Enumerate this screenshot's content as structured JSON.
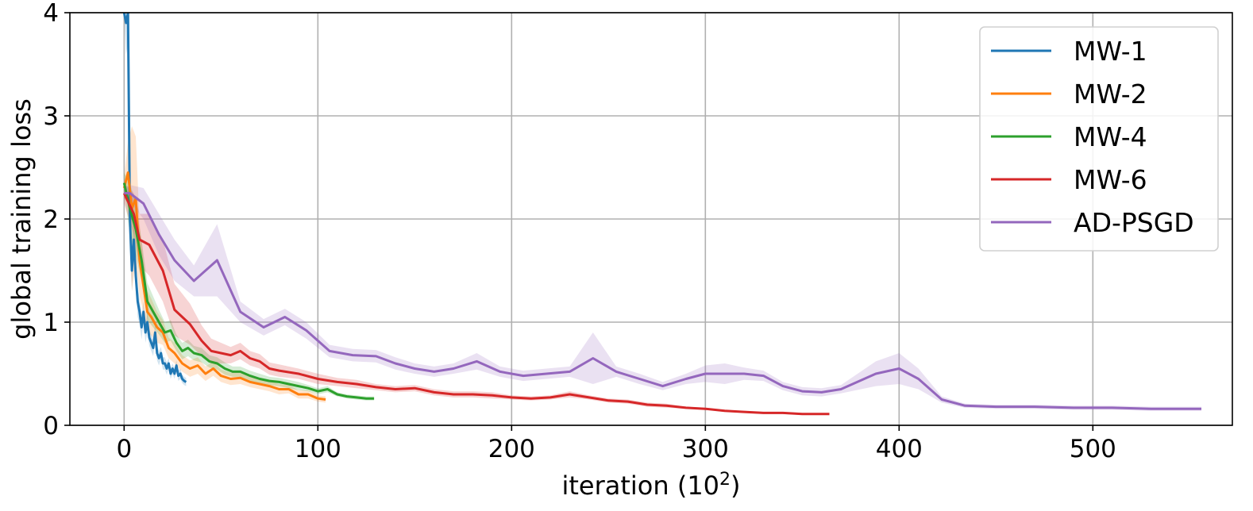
{
  "chart_data": {
    "type": "line",
    "xlabel": "iteration (10",
    "xlabel_sup": "2",
    "xlabel_end": ")",
    "ylabel": "global training loss",
    "xlim": [
      -28,
      572
    ],
    "ylim": [
      0,
      4
    ],
    "x_ticks": [
      0,
      100,
      200,
      300,
      400,
      500
    ],
    "y_ticks": [
      0,
      1,
      2,
      3,
      4
    ],
    "grid": true,
    "legend_position": "top-right",
    "series": [
      {
        "name": "MW-1",
        "color": "#1f77b4",
        "x": [
          0,
          1,
          2,
          3,
          4,
          5,
          6,
          7,
          8,
          9,
          10,
          11,
          12,
          13,
          14,
          15,
          16,
          17,
          18,
          19,
          20,
          21,
          22,
          23,
          24,
          25,
          26,
          27,
          28,
          29,
          30,
          31,
          32
        ],
        "y": [
          4.0,
          3.9,
          4.0,
          2.0,
          1.5,
          1.8,
          1.45,
          1.2,
          1.1,
          0.95,
          1.1,
          0.9,
          1.0,
          0.85,
          0.8,
          0.75,
          0.9,
          0.7,
          0.65,
          0.7,
          0.6,
          0.6,
          0.55,
          0.6,
          0.5,
          0.55,
          0.5,
          0.58,
          0.48,
          0.5,
          0.45,
          0.43,
          0.42
        ],
        "band": [
          0.0,
          0.3,
          0.3,
          0.25,
          0.2,
          0.2,
          0.15,
          0.15,
          0.12,
          0.12,
          0.1,
          0.1,
          0.1,
          0.08,
          0.08,
          0.08,
          0.08,
          0.07,
          0.07,
          0.06,
          0.06,
          0.06,
          0.06,
          0.05,
          0.05,
          0.05,
          0.05,
          0.05,
          0.05,
          0.05,
          0.04,
          0.04,
          0.04
        ]
      },
      {
        "name": "MW-2",
        "color": "#ff7f0e",
        "x": [
          0,
          2,
          4,
          6,
          8,
          10,
          12,
          14,
          17,
          20,
          23,
          26,
          30,
          34,
          38,
          42,
          46,
          50,
          55,
          60,
          65,
          70,
          75,
          80,
          85,
          90,
          95,
          100,
          104
        ],
        "y": [
          2.3,
          2.45,
          2.1,
          2.2,
          1.6,
          1.35,
          1.1,
          1.05,
          0.95,
          0.9,
          0.75,
          0.7,
          0.6,
          0.55,
          0.58,
          0.5,
          0.55,
          0.48,
          0.45,
          0.46,
          0.42,
          0.4,
          0.38,
          0.35,
          0.35,
          0.3,
          0.3,
          0.26,
          0.25
        ],
        "band": [
          0.1,
          0.3,
          0.8,
          0.6,
          0.35,
          0.25,
          0.2,
          0.18,
          0.15,
          0.12,
          0.1,
          0.1,
          0.08,
          0.08,
          0.08,
          0.07,
          0.07,
          0.06,
          0.06,
          0.06,
          0.05,
          0.05,
          0.05,
          0.05,
          0.04,
          0.04,
          0.04,
          0.03,
          0.03
        ]
      },
      {
        "name": "MW-4",
        "color": "#2ca02c",
        "x": [
          0,
          3,
          6,
          9,
          12,
          15,
          18,
          21,
          24,
          27,
          30,
          33,
          36,
          40,
          44,
          48,
          52,
          56,
          60,
          65,
          70,
          75,
          80,
          85,
          90,
          95,
          100,
          105,
          110,
          115,
          120,
          125,
          129
        ],
        "y": [
          2.35,
          2.1,
          1.9,
          1.6,
          1.2,
          1.1,
          1.0,
          0.9,
          0.92,
          0.8,
          0.72,
          0.75,
          0.7,
          0.68,
          0.62,
          0.6,
          0.55,
          0.52,
          0.52,
          0.48,
          0.45,
          0.43,
          0.42,
          0.4,
          0.38,
          0.36,
          0.33,
          0.35,
          0.3,
          0.28,
          0.27,
          0.26,
          0.26
        ],
        "band": [
          0.1,
          0.25,
          0.25,
          0.2,
          0.18,
          0.15,
          0.12,
          0.1,
          0.1,
          0.08,
          0.08,
          0.08,
          0.07,
          0.07,
          0.06,
          0.06,
          0.06,
          0.05,
          0.05,
          0.05,
          0.05,
          0.04,
          0.04,
          0.04,
          0.04,
          0.03,
          0.03,
          0.03,
          0.02,
          0.02,
          0.02,
          0.02,
          0.02
        ]
      },
      {
        "name": "MW-6",
        "color": "#d62728",
        "x": [
          0,
          5,
          8,
          13,
          20,
          26,
          34,
          40,
          45,
          50,
          55,
          60,
          65,
          70,
          75,
          80,
          90,
          100,
          110,
          120,
          130,
          140,
          150,
          160,
          170,
          180,
          190,
          200,
          210,
          220,
          230,
          240,
          250,
          260,
          270,
          280,
          290,
          300,
          310,
          320,
          330,
          340,
          350,
          364
        ],
        "y": [
          2.25,
          2.05,
          1.8,
          1.75,
          1.5,
          1.12,
          0.98,
          0.82,
          0.72,
          0.7,
          0.68,
          0.72,
          0.65,
          0.62,
          0.55,
          0.53,
          0.5,
          0.45,
          0.42,
          0.4,
          0.37,
          0.35,
          0.36,
          0.32,
          0.3,
          0.3,
          0.29,
          0.27,
          0.26,
          0.27,
          0.3,
          0.27,
          0.24,
          0.23,
          0.2,
          0.19,
          0.17,
          0.16,
          0.14,
          0.13,
          0.12,
          0.12,
          0.11,
          0.11
        ],
        "band": [
          0.1,
          0.2,
          0.25,
          0.3,
          0.3,
          0.25,
          0.2,
          0.15,
          0.12,
          0.1,
          0.08,
          0.08,
          0.07,
          0.07,
          0.06,
          0.06,
          0.05,
          0.05,
          0.04,
          0.04,
          0.03,
          0.03,
          0.03,
          0.03,
          0.03,
          0.03,
          0.03,
          0.02,
          0.02,
          0.02,
          0.03,
          0.02,
          0.02,
          0.02,
          0.02,
          0.02,
          0.01,
          0.01,
          0.01,
          0.01,
          0.01,
          0.01,
          0.01,
          0.01
        ]
      },
      {
        "name": "AD-PSGD",
        "color": "#9467bd",
        "x": [
          0,
          3,
          10,
          18,
          26,
          36,
          48,
          60,
          72,
          83,
          94,
          106,
          118,
          130,
          140,
          150,
          160,
          170,
          182,
          194,
          206,
          218,
          230,
          242,
          254,
          266,
          278,
          290,
          300,
          310,
          320,
          330,
          340,
          350,
          360,
          370,
          388,
          400,
          410,
          422,
          434,
          450,
          470,
          490,
          510,
          530,
          556
        ],
        "y": [
          2.25,
          2.25,
          2.15,
          1.85,
          1.6,
          1.4,
          1.6,
          1.1,
          0.95,
          1.05,
          0.92,
          0.72,
          0.68,
          0.67,
          0.6,
          0.55,
          0.52,
          0.55,
          0.62,
          0.52,
          0.48,
          0.5,
          0.52,
          0.65,
          0.52,
          0.45,
          0.38,
          0.45,
          0.5,
          0.5,
          0.5,
          0.48,
          0.38,
          0.33,
          0.32,
          0.35,
          0.5,
          0.55,
          0.45,
          0.25,
          0.19,
          0.18,
          0.18,
          0.17,
          0.17,
          0.16,
          0.16
        ],
        "band": [
          0.05,
          0.08,
          0.15,
          0.2,
          0.2,
          0.15,
          0.35,
          0.1,
          0.08,
          0.08,
          0.08,
          0.06,
          0.06,
          0.06,
          0.06,
          0.05,
          0.05,
          0.05,
          0.08,
          0.05,
          0.05,
          0.05,
          0.05,
          0.25,
          0.05,
          0.05,
          0.04,
          0.05,
          0.08,
          0.1,
          0.06,
          0.05,
          0.04,
          0.04,
          0.04,
          0.04,
          0.12,
          0.15,
          0.1,
          0.03,
          0.02,
          0.02,
          0.02,
          0.02,
          0.02,
          0.02,
          0.02
        ]
      }
    ]
  }
}
